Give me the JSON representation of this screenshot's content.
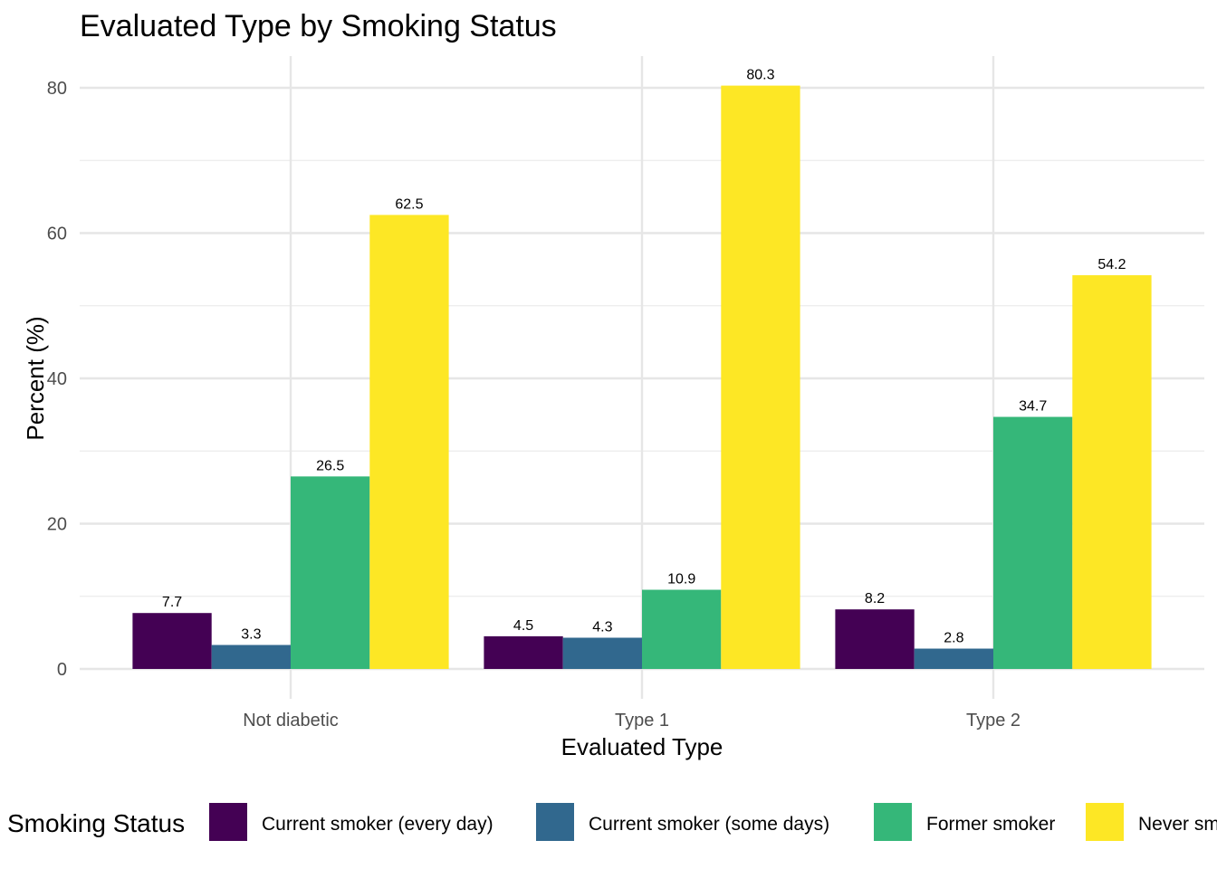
{
  "chart_data": {
    "type": "bar",
    "title": "Evaluated Type by Smoking Status",
    "xlabel": "Evaluated Type",
    "ylabel": "Percent (%)",
    "categories": [
      "Not diabetic",
      "Type 1",
      "Type 2"
    ],
    "series": [
      {
        "name": "Current smoker (every day)",
        "color": "#440154",
        "values": [
          7.7,
          4.5,
          8.2
        ]
      },
      {
        "name": "Current smoker (some days)",
        "color": "#31688E",
        "values": [
          3.3,
          4.3,
          2.8
        ]
      },
      {
        "name": "Former smoker",
        "color": "#35B779",
        "values": [
          26.5,
          10.9,
          34.7
        ]
      },
      {
        "name": "Never smoker",
        "color": "#FDE725",
        "values": [
          62.5,
          80.3,
          54.2
        ]
      }
    ],
    "ylim": [
      0,
      84.2
    ],
    "yticks": [
      0,
      20,
      40,
      60,
      80
    ],
    "grid": true,
    "legend": {
      "title": "Smoking Status",
      "position": "bottom"
    }
  }
}
